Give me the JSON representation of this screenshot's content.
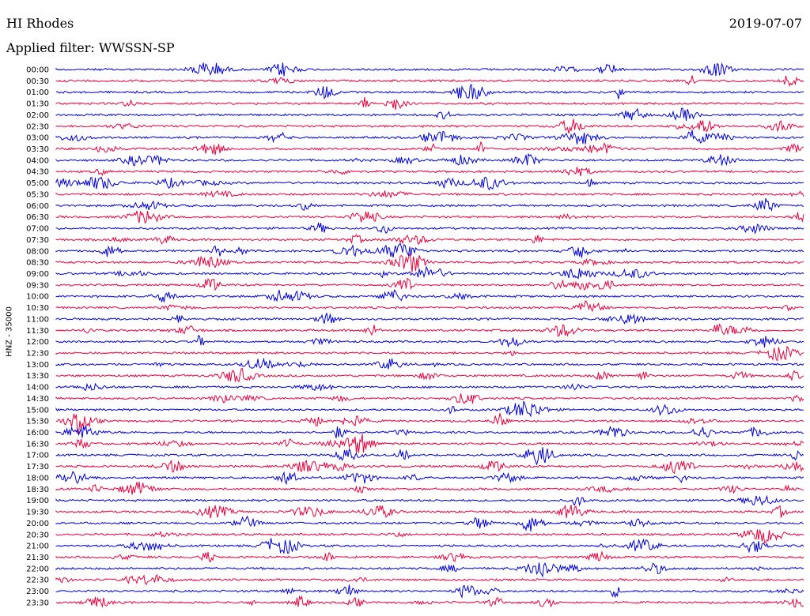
{
  "header": {
    "station": "HI Rhodes",
    "date": "2019-07-07",
    "filter_label": "Applied filter: WWSSN-SP"
  },
  "chart_data": {
    "type": "line",
    "title": "HI Rhodes",
    "subtitle": "Applied filter: WWSSN-SP",
    "ylabel": "HNZ - 35000",
    "row_labels": [
      "00:00",
      "00:30",
      "01:00",
      "01:30",
      "02:00",
      "02:30",
      "03:00",
      "03:30",
      "04:00",
      "04:30",
      "05:00",
      "05:30",
      "06:00",
      "06:30",
      "07:00",
      "07:30",
      "08:00",
      "08:30",
      "09:00",
      "09:30",
      "10:00",
      "10:30",
      "11:00",
      "11:30",
      "12:00",
      "12:30",
      "13:00",
      "13:30",
      "14:00",
      "14:30",
      "15:00",
      "15:30",
      "16:00",
      "16:30",
      "17:00",
      "17:30",
      "18:00",
      "18:30",
      "19:00",
      "19:30",
      "20:00",
      "20:30",
      "21:00",
      "21:30",
      "22:00",
      "22:30",
      "23:00",
      "23:30"
    ],
    "series_colors": [
      "#0000d8",
      "#e8003c"
    ],
    "row_minutes": 30,
    "grid": false
  }
}
